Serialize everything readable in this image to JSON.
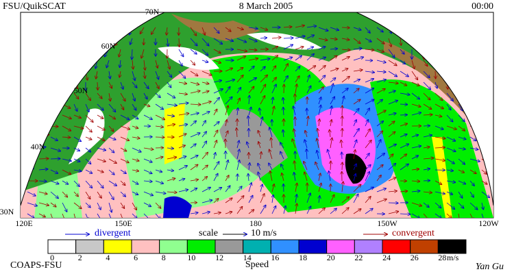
{
  "header": {
    "left": "FSU/QuikSCAT",
    "center": "8 March 2005",
    "right": "00:00"
  },
  "lat_labels": [
    "70N",
    "60N",
    "50N",
    "40N",
    "30N"
  ],
  "lon_labels": [
    "120E",
    "150E",
    "180",
    "150W",
    "120W"
  ],
  "legend": {
    "divergent": "divergent",
    "scale": "scale",
    "scale_value": "10 m/s",
    "convergent": "convergent"
  },
  "colorbar": {
    "ticks": [
      0,
      2,
      4,
      6,
      8,
      10,
      12,
      14,
      16,
      18,
      20,
      22,
      24,
      26,
      28
    ],
    "unit": "m/s",
    "label": "Speed",
    "colors": [
      "#ffffff",
      "#c8c8c8",
      "#ffff00",
      "#ffc0c0",
      "#90ff90",
      "#00ee00",
      "#999999",
      "#00b0b0",
      "#3090ff",
      "#0000d0",
      "#ff60ff",
      "#b080ff",
      "#ff0000",
      "#c04000",
      "#000000"
    ]
  },
  "footer": {
    "left": "COAPS-FSU",
    "right": "Yan Gu"
  }
}
